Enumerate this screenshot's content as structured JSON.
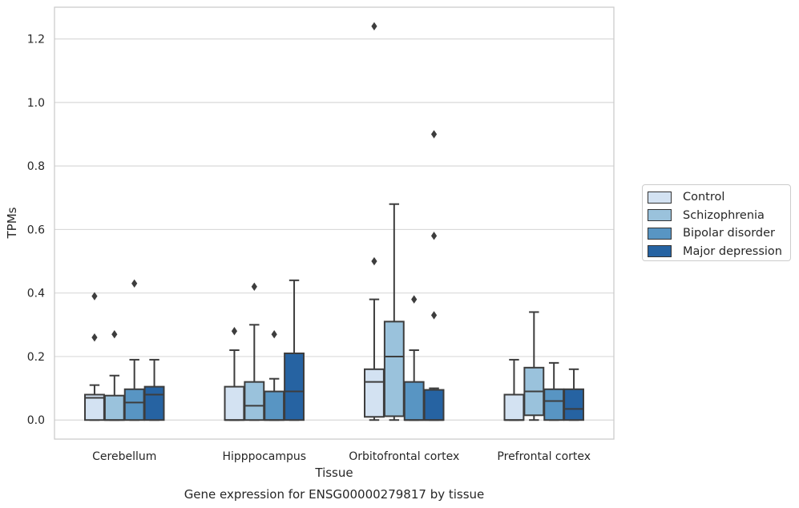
{
  "chart_data": {
    "type": "box",
    "xlabel": "Tissue",
    "ylabel": "TPMs",
    "caption": "Gene expression for ENSG00000279817 by tissue",
    "ylim": [
      -0.06,
      1.3
    ],
    "yticks": [
      0.0,
      0.2,
      0.4,
      0.6,
      0.8,
      1.0,
      1.2
    ],
    "ytick_labels": [
      "0.0",
      "0.2",
      "0.4",
      "0.6",
      "0.8",
      "1.0",
      "1.2"
    ],
    "grid": "horizontal",
    "legend_position": "right",
    "categories": [
      "Cerebellum",
      "Hipppocampus",
      "Orbitofrontal cortex",
      "Prefrontal cortex"
    ],
    "series": [
      {
        "name": "Control",
        "color": "#d3e2f2",
        "boxes": [
          {
            "min": 0.0,
            "q1": 0.0,
            "median": 0.07,
            "q3": 0.08,
            "max": 0.11,
            "outliers": [
              0.26,
              0.39
            ]
          },
          {
            "min": 0.0,
            "q1": 0.0,
            "median": 0.0,
            "q3": 0.105,
            "max": 0.22,
            "outliers": [
              0.28
            ]
          },
          {
            "min": 0.0,
            "q1": 0.01,
            "median": 0.12,
            "q3": 0.16,
            "max": 0.38,
            "outliers": [
              0.5,
              1.24
            ]
          },
          {
            "min": 0.0,
            "q1": 0.0,
            "median": 0.0,
            "q3": 0.08,
            "max": 0.19,
            "outliers": []
          }
        ]
      },
      {
        "name": "Schizophrenia",
        "color": "#9ac2dc",
        "boxes": [
          {
            "min": 0.0,
            "q1": 0.0,
            "median": 0.0,
            "q3": 0.077,
            "max": 0.14,
            "outliers": [
              0.27
            ]
          },
          {
            "min": 0.0,
            "q1": 0.0,
            "median": 0.045,
            "q3": 0.12,
            "max": 0.3,
            "outliers": [
              0.42
            ]
          },
          {
            "min": 0.0,
            "q1": 0.012,
            "median": 0.2,
            "q3": 0.31,
            "max": 0.68,
            "outliers": []
          },
          {
            "min": 0.0,
            "q1": 0.015,
            "median": 0.09,
            "q3": 0.165,
            "max": 0.34,
            "outliers": []
          }
        ]
      },
      {
        "name": "Bipolar disorder",
        "color": "#5895c3",
        "boxes": [
          {
            "min": 0.0,
            "q1": 0.0,
            "median": 0.055,
            "q3": 0.097,
            "max": 0.19,
            "outliers": [
              0.43
            ]
          },
          {
            "min": 0.0,
            "q1": 0.0,
            "median": 0.0,
            "q3": 0.09,
            "max": 0.13,
            "outliers": [
              0.27
            ]
          },
          {
            "min": 0.0,
            "q1": 0.0,
            "median": 0.0,
            "q3": 0.12,
            "max": 0.22,
            "outliers": [
              0.38
            ]
          },
          {
            "min": 0.0,
            "q1": 0.0,
            "median": 0.06,
            "q3": 0.097,
            "max": 0.18,
            "outliers": []
          }
        ]
      },
      {
        "name": "Major depression",
        "color": "#2663a2",
        "boxes": [
          {
            "min": 0.0,
            "q1": 0.0,
            "median": 0.08,
            "q3": 0.105,
            "max": 0.19,
            "outliers": []
          },
          {
            "min": 0.0,
            "q1": 0.0,
            "median": 0.09,
            "q3": 0.21,
            "max": 0.44,
            "outliers": []
          },
          {
            "min": 0.0,
            "q1": 0.0,
            "median": 0.0,
            "q3": 0.095,
            "max": 0.1,
            "outliers": [
              0.33,
              0.58,
              0.9
            ]
          },
          {
            "min": 0.0,
            "q1": 0.0,
            "median": 0.035,
            "q3": 0.097,
            "max": 0.16,
            "outliers": []
          }
        ]
      }
    ]
  }
}
